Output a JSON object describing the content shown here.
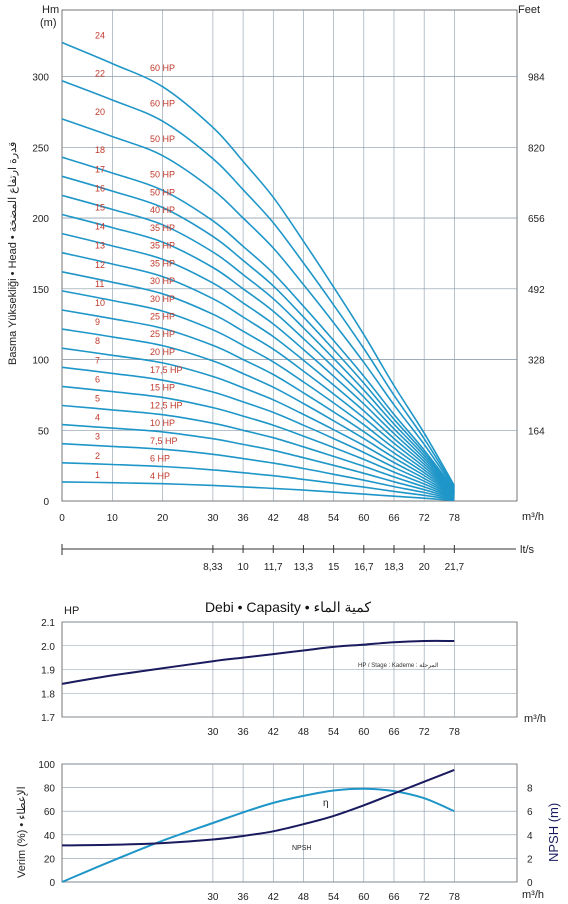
{
  "colors": {
    "curve": "#1f96c8",
    "curve_dark": "#1a1a5e",
    "label_red": "#c0392b",
    "grid": "#8a9aa8"
  },
  "lps_ticks": [
    "8,33",
    "10",
    "11,7",
    "13,3",
    "15",
    "16,7",
    "18,3",
    "20",
    "21,7"
  ],
  "lps_unit": "lt/s",
  "center_title": "Debi • Capasity • كمية الماء",
  "head_axis_text": "Basma Yüksekliği • Head • قدرة ارتفاع المضخة",
  "chart_data": [
    {
      "type": "line",
      "title": "",
      "xlabel": "m³/h",
      "ylabel": "Hm (m)",
      "y2label": "Feet",
      "x_ticks": [
        0,
        10,
        20,
        30,
        36,
        42,
        48,
        54,
        60,
        66,
        72,
        78
      ],
      "y_ticks": [
        0,
        50,
        100,
        150,
        200,
        250,
        300
      ],
      "y2_ticks": [
        164,
        328,
        492,
        656,
        820,
        984
      ],
      "ylim": [
        0,
        335
      ],
      "xlim": [
        0,
        90
      ],
      "grid": true,
      "x": [
        0,
        10,
        20,
        30,
        36,
        42,
        48,
        54,
        60,
        66,
        72,
        78
      ],
      "stage_labels": [
        {
          "stage": "1",
          "hp": "4 HP"
        },
        {
          "stage": "2",
          "hp": "6 HP"
        },
        {
          "stage": "3",
          "hp": "7,5 HP"
        },
        {
          "stage": "4",
          "hp": "10 HP"
        },
        {
          "stage": "5",
          "hp": "12,5 HP"
        },
        {
          "stage": "6",
          "hp": "15 HP"
        },
        {
          "stage": "7",
          "hp": "17,5 HP"
        },
        {
          "stage": "8",
          "hp": "20 HP"
        },
        {
          "stage": "9",
          "hp": "25 HP"
        },
        {
          "stage": "10",
          "hp": "25 HP"
        },
        {
          "stage": "11",
          "hp": "30 HP"
        },
        {
          "stage": "12",
          "hp": "30 HP"
        },
        {
          "stage": "13",
          "hp": "35 HP"
        },
        {
          "stage": "14",
          "hp": "35 HP"
        },
        {
          "stage": "15",
          "hp": "35 HP"
        },
        {
          "stage": "16",
          "hp": "40 HP"
        },
        {
          "stage": "17",
          "hp": "50 HP"
        },
        {
          "stage": "18",
          "hp": "50 HP"
        },
        {
          "stage": "20",
          "hp": "50 HP"
        },
        {
          "stage": "22",
          "hp": "60 HP"
        },
        {
          "stage": "24",
          "hp": "60 HP"
        }
      ],
      "series": [
        {
          "values": [
            13.5,
            12.9,
            12.2,
            11,
            10,
            8.9,
            7.7,
            6.3,
            4.9,
            3.4,
            2,
            0.4
          ]
        },
        {
          "values": [
            27,
            25.8,
            24.4,
            22,
            20,
            17.9,
            15.3,
            12.6,
            9.8,
            6.8,
            4,
            0.9
          ]
        },
        {
          "values": [
            40.5,
            38.6,
            36.6,
            33,
            30,
            26.8,
            23,
            18.9,
            14.7,
            10.2,
            6,
            1.3
          ]
        },
        {
          "values": [
            54,
            51.5,
            48.8,
            44,
            40,
            35.8,
            30.6,
            25.2,
            19.6,
            13.6,
            8,
            1.8
          ]
        },
        {
          "values": [
            67.5,
            64.4,
            61,
            55,
            50,
            44.7,
            38.3,
            31.5,
            24.5,
            17,
            10,
            2.2
          ]
        },
        {
          "values": [
            81,
            77.3,
            73.2,
            66,
            60,
            53.6,
            45.9,
            37.8,
            29.4,
            20.4,
            12,
            2.7
          ]
        },
        {
          "values": [
            94.5,
            90.2,
            85.4,
            77,
            70,
            62.6,
            53.6,
            44.1,
            34.3,
            23.8,
            14,
            3.1
          ]
        },
        {
          "values": [
            108,
            103,
            97.6,
            88,
            80,
            71.5,
            61.2,
            50.4,
            39.2,
            27.2,
            16,
            3.6
          ]
        },
        {
          "values": [
            121.5,
            116,
            109.8,
            99,
            90,
            80.4,
            68.9,
            56.7,
            44.1,
            30.6,
            18,
            4
          ]
        },
        {
          "values": [
            135,
            128.8,
            122,
            110,
            100,
            89.4,
            76.5,
            63,
            49,
            34,
            20,
            4.5
          ]
        },
        {
          "values": [
            148.5,
            141.7,
            134.2,
            121,
            110,
            98.3,
            84.2,
            69.3,
            53.9,
            37.4,
            22,
            4.9
          ]
        },
        {
          "values": [
            162,
            154.6,
            146.4,
            132,
            120,
            107.3,
            91.8,
            75.6,
            58.8,
            40.8,
            24,
            5.4
          ]
        },
        {
          "values": [
            175.5,
            167.5,
            158.6,
            143,
            130,
            116.2,
            99.5,
            81.9,
            63.7,
            44.2,
            26,
            5.8
          ]
        },
        {
          "values": [
            189,
            180.3,
            170.8,
            154,
            140,
            125.1,
            107.1,
            88.2,
            68.6,
            47.6,
            28,
            6.3
          ]
        },
        {
          "values": [
            202.5,
            193.2,
            183,
            165,
            150,
            134.1,
            114.8,
            94.5,
            73.5,
            51,
            30,
            6.7
          ]
        },
        {
          "values": [
            216,
            206.1,
            195.2,
            176,
            160,
            143,
            122.4,
            100.8,
            78.4,
            54.4,
            32,
            7.2
          ]
        },
        {
          "values": [
            229.5,
            219,
            207.4,
            187,
            170,
            152,
            130.1,
            107.1,
            83.3,
            57.8,
            34,
            7.6
          ]
        },
        {
          "values": [
            243,
            231.8,
            219.6,
            198,
            180,
            160.9,
            137.7,
            113.4,
            88.2,
            61.2,
            36,
            8.1
          ]
        },
        {
          "values": [
            270,
            257.6,
            244,
            220,
            200,
            178.8,
            153,
            126,
            98,
            68,
            40,
            9
          ]
        },
        {
          "values": [
            297,
            283.4,
            268.4,
            242,
            220,
            196.7,
            168.3,
            138.6,
            107.8,
            74.8,
            44,
            9.9
          ]
        },
        {
          "values": [
            324,
            309.1,
            292.8,
            264,
            240,
            214.6,
            183.6,
            151.2,
            117.6,
            81.6,
            48,
            10.8
          ]
        }
      ]
    },
    {
      "type": "line",
      "title": "",
      "ylabel": "HP",
      "xlabel": "m³/h",
      "x_ticks": [
        30,
        36,
        42,
        48,
        54,
        60,
        66,
        72,
        78
      ],
      "y_ticks": [
        "1.7",
        "1.8",
        "1.9",
        "2.0",
        "2.1"
      ],
      "ylim": [
        1.7,
        2.1
      ],
      "grid": true,
      "annotation": "HP / Stage : Kademe : المرحلة",
      "x": [
        0,
        10,
        20,
        30,
        36,
        42,
        48,
        54,
        60,
        66,
        72,
        78
      ],
      "series": [
        {
          "values": [
            1.84,
            1.875,
            1.905,
            1.935,
            1.95,
            1.965,
            1.98,
            1.995,
            2.005,
            2.015,
            2.02,
            2.02
          ]
        }
      ]
    },
    {
      "type": "line",
      "title": "",
      "ylabel": "Verim (%) • الإعطاء",
      "y2label": "NPSH (m)",
      "xlabel": "m³/h",
      "x_ticks": [
        30,
        36,
        42,
        48,
        54,
        60,
        66,
        72,
        78
      ],
      "y_ticks": [
        0,
        20,
        40,
        60,
        80,
        100
      ],
      "y2_ticks": [
        0,
        2,
        4,
        6,
        8
      ],
      "ylim": [
        0,
        100
      ],
      "y2lim": [
        0,
        10
      ],
      "grid": true,
      "x": [
        0,
        10,
        20,
        30,
        36,
        42,
        48,
        54,
        60,
        66,
        72,
        78
      ],
      "series": [
        {
          "name": "η",
          "values": [
            0,
            18,
            35,
            50,
            59,
            67,
            73,
            77.5,
            79,
            77,
            71,
            60
          ]
        },
        {
          "name": "NPSH",
          "values": [
            3.1,
            3.15,
            3.3,
            3.6,
            3.9,
            4.3,
            4.9,
            5.6,
            6.5,
            7.5,
            8.5,
            9.5
          ]
        }
      ]
    }
  ]
}
